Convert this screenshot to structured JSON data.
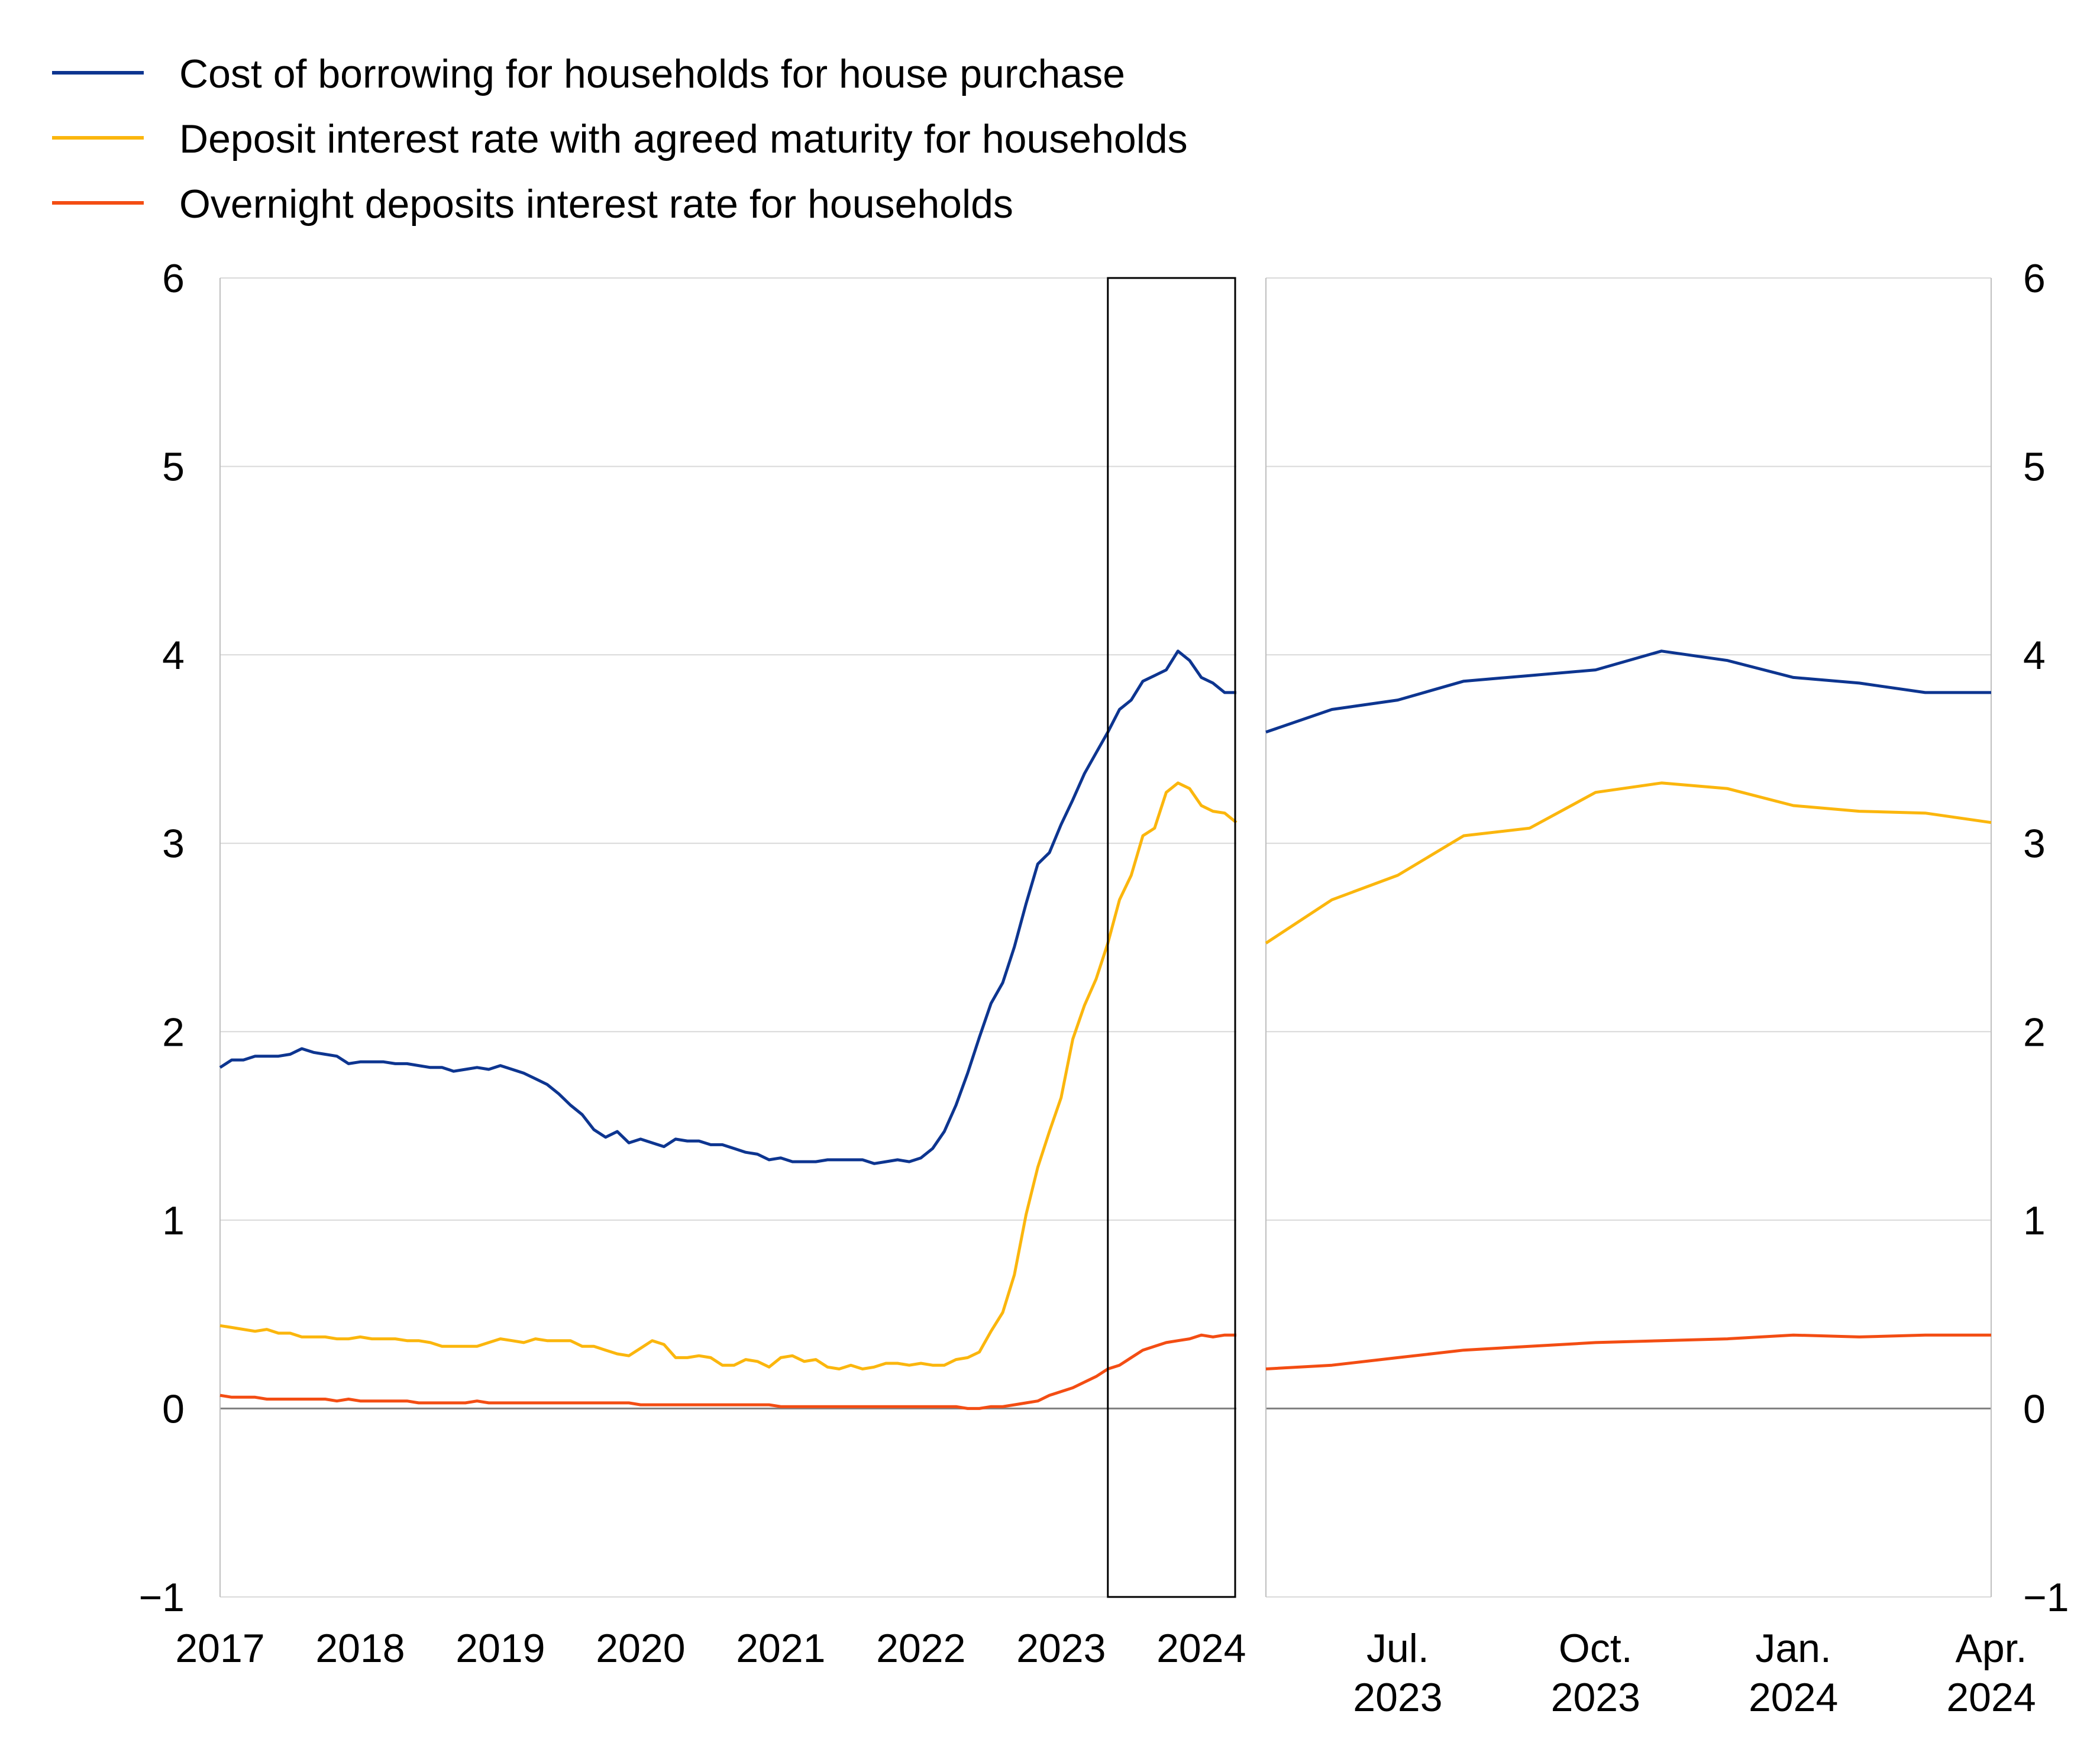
{
  "legend": {
    "items": [
      {
        "label": "Cost of borrowing for households for house purchase",
        "color": "#0d3590"
      },
      {
        "label": "Deposit interest rate with agreed maturity for households",
        "color": "#fbb60d"
      },
      {
        "label": "Overnight deposits interest rate for households",
        "color": "#f34d13"
      }
    ]
  },
  "chart_data": [
    {
      "type": "line",
      "panel": "left",
      "xlabel": "",
      "ylabel": "",
      "x_range": [
        "2017-01",
        "2024-04"
      ],
      "ylim": [
        -1,
        6
      ],
      "yticks": [
        -1,
        0,
        1,
        2,
        3,
        4,
        5,
        6
      ],
      "xticks": [
        "2017",
        "2018",
        "2019",
        "2020",
        "2021",
        "2022",
        "2023",
        "2024"
      ],
      "grid": "horizontal",
      "highlight_box": [
        "2023-05",
        "2024-04"
      ],
      "x_start": "2017-01",
      "series": [
        {
          "name": "Cost of borrowing for households for house purchase",
          "color": "#0d3590",
          "values": [
            1.81,
            1.85,
            1.85,
            1.87,
            1.87,
            1.87,
            1.88,
            1.91,
            1.89,
            1.88,
            1.87,
            1.83,
            1.84,
            1.84,
            1.84,
            1.83,
            1.83,
            1.82,
            1.81,
            1.81,
            1.79,
            1.8,
            1.81,
            1.8,
            1.82,
            1.8,
            1.78,
            1.75,
            1.72,
            1.67,
            1.61,
            1.56,
            1.48,
            1.44,
            1.47,
            1.41,
            1.43,
            1.41,
            1.39,
            1.43,
            1.42,
            1.42,
            1.4,
            1.4,
            1.38,
            1.36,
            1.35,
            1.32,
            1.33,
            1.31,
            1.31,
            1.31,
            1.32,
            1.32,
            1.32,
            1.32,
            1.3,
            1.31,
            1.32,
            1.31,
            1.33,
            1.38,
            1.47,
            1.61,
            1.78,
            1.97,
            2.15,
            2.26,
            2.45,
            2.68,
            2.89,
            2.95,
            3.1,
            3.23,
            3.37,
            3.48,
            3.59,
            3.71,
            3.76,
            3.86,
            3.89,
            3.92,
            4.02,
            3.97,
            3.88,
            3.85,
            3.8,
            3.8
          ]
        },
        {
          "name": "Deposit interest rate with agreed maturity for households",
          "color": "#fbb60d",
          "values": [
            0.44,
            0.43,
            0.42,
            0.41,
            0.42,
            0.4,
            0.4,
            0.38,
            0.38,
            0.38,
            0.37,
            0.37,
            0.38,
            0.37,
            0.37,
            0.37,
            0.36,
            0.36,
            0.35,
            0.33,
            0.33,
            0.33,
            0.33,
            0.35,
            0.37,
            0.36,
            0.35,
            0.37,
            0.36,
            0.36,
            0.36,
            0.33,
            0.33,
            0.31,
            0.29,
            0.28,
            0.32,
            0.36,
            0.34,
            0.27,
            0.27,
            0.28,
            0.27,
            0.23,
            0.23,
            0.26,
            0.25,
            0.22,
            0.27,
            0.28,
            0.25,
            0.26,
            0.22,
            0.21,
            0.23,
            0.21,
            0.22,
            0.24,
            0.24,
            0.23,
            0.24,
            0.23,
            0.23,
            0.26,
            0.27,
            0.3,
            0.41,
            0.51,
            0.71,
            1.03,
            1.28,
            1.47,
            1.65,
            1.96,
            2.14,
            2.28,
            2.47,
            2.7,
            2.83,
            3.04,
            3.08,
            3.27,
            3.32,
            3.29,
            3.2,
            3.17,
            3.16,
            3.11
          ]
        },
        {
          "name": "Overnight deposits interest rate for households",
          "color": "#f34d13",
          "values": [
            0.07,
            0.06,
            0.06,
            0.06,
            0.05,
            0.05,
            0.05,
            0.05,
            0.05,
            0.05,
            0.04,
            0.05,
            0.04,
            0.04,
            0.04,
            0.04,
            0.04,
            0.03,
            0.03,
            0.03,
            0.03,
            0.03,
            0.04,
            0.03,
            0.03,
            0.03,
            0.03,
            0.03,
            0.03,
            0.03,
            0.03,
            0.03,
            0.03,
            0.03,
            0.03,
            0.03,
            0.02,
            0.02,
            0.02,
            0.02,
            0.02,
            0.02,
            0.02,
            0.02,
            0.02,
            0.02,
            0.02,
            0.02,
            0.01,
            0.01,
            0.01,
            0.01,
            0.01,
            0.01,
            0.01,
            0.01,
            0.01,
            0.01,
            0.01,
            0.01,
            0.01,
            0.01,
            0.01,
            0.01,
            0.0,
            0.0,
            0.01,
            0.01,
            0.02,
            0.03,
            0.04,
            0.07,
            0.09,
            0.11,
            0.14,
            0.17,
            0.21,
            0.23,
            0.27,
            0.31,
            0.33,
            0.35,
            0.36,
            0.37,
            0.39,
            0.38,
            0.39,
            0.39
          ]
        }
      ]
    },
    {
      "type": "line",
      "panel": "right",
      "xlabel": "",
      "ylabel": "",
      "ylim": [
        -1,
        6
      ],
      "yticks": [
        -1,
        0,
        1,
        2,
        3,
        4,
        5,
        6
      ],
      "grid": "horizontal",
      "categories": [
        "May 2023",
        "Jun 2023",
        "Jul 2023",
        "Aug 2023",
        "Sep 2023",
        "Oct 2023",
        "Nov 2023",
        "Dec 2023",
        "Jan 2024",
        "Feb 2024",
        "Mar 2024",
        "Apr 2024"
      ],
      "xticks": [
        {
          "index": 2,
          "line1": "Jul.",
          "line2": "2023"
        },
        {
          "index": 5,
          "line1": "Oct.",
          "line2": "2023"
        },
        {
          "index": 8,
          "line1": "Jan.",
          "line2": "2024"
        },
        {
          "index": 11,
          "line1": "Apr.",
          "line2": "2024"
        }
      ],
      "series": [
        {
          "name": "Cost of borrowing for households for house purchase",
          "color": "#0d3590",
          "values": [
            3.59,
            3.71,
            3.76,
            3.86,
            3.89,
            3.92,
            4.02,
            3.97,
            3.88,
            3.85,
            3.8,
            3.8
          ]
        },
        {
          "name": "Deposit interest rate with agreed maturity for households",
          "color": "#fbb60d",
          "values": [
            2.47,
            2.7,
            2.83,
            3.04,
            3.08,
            3.27,
            3.32,
            3.29,
            3.2,
            3.17,
            3.16,
            3.11
          ]
        },
        {
          "name": "Overnight deposits interest rate for households",
          "color": "#f34d13",
          "values": [
            0.21,
            0.23,
            0.27,
            0.31,
            0.33,
            0.35,
            0.36,
            0.37,
            0.39,
            0.38,
            0.39,
            0.39
          ]
        }
      ]
    }
  ]
}
